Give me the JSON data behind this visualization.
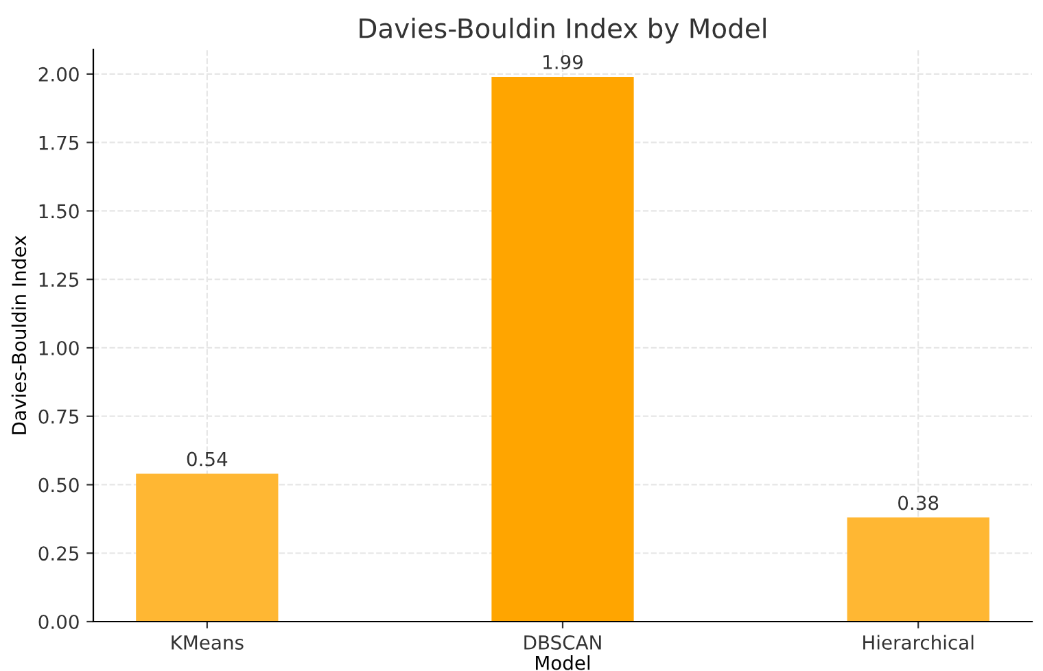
{
  "chart_data": {
    "type": "bar",
    "title": "Davies-Bouldin Index by Model",
    "xlabel": "Model",
    "ylabel": "Davies-Bouldin Index",
    "categories": [
      "KMeans",
      "DBSCAN",
      "Hierarchical"
    ],
    "values": [
      0.54,
      1.99,
      0.38
    ],
    "colors": [
      "#ffb733",
      "#ffa500",
      "#ffb733"
    ],
    "ylim": [
      0,
      2.09
    ],
    "yticks": [
      {
        "value": 0,
        "label": "0.00"
      },
      {
        "value": 0.25,
        "label": "0.25"
      },
      {
        "value": 0.5,
        "label": "0.50"
      },
      {
        "value": 0.75,
        "label": "0.75"
      },
      {
        "value": 1,
        "label": "1.00"
      },
      {
        "value": 1.25,
        "label": "1.25"
      },
      {
        "value": 1.5,
        "label": "1.50"
      },
      {
        "value": 1.75,
        "label": "1.75"
      },
      {
        "value": 2,
        "label": "2.00"
      }
    ],
    "grid": true,
    "data_labels": true
  }
}
